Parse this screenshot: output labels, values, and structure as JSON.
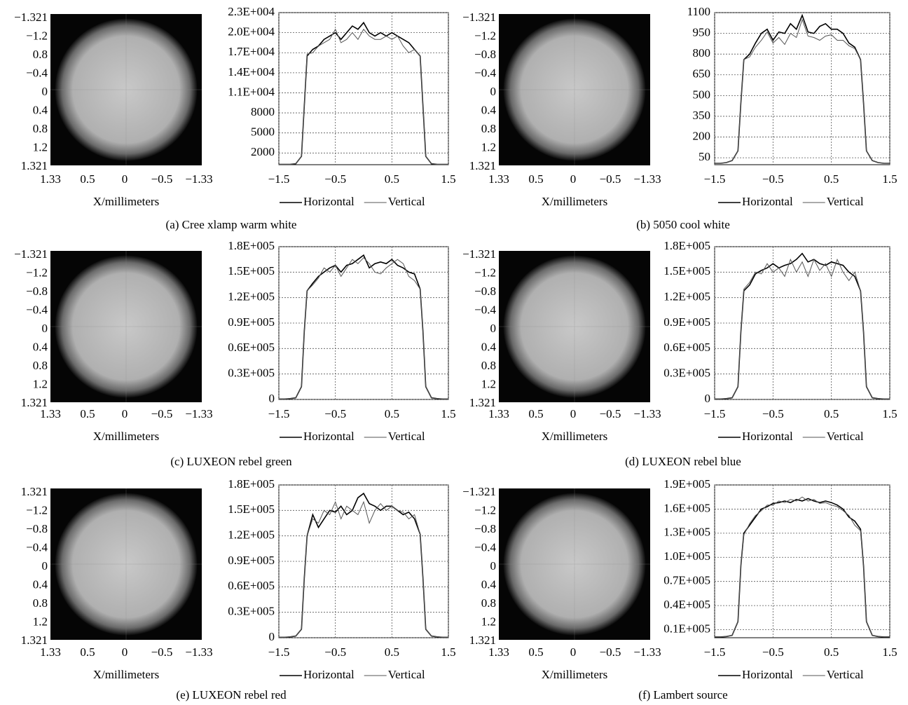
{
  "chart_data": [
    {
      "type": "line",
      "caption": "(a) Cree xlamp warm white",
      "image": {
        "yticklabels": [
          "−1.321",
          "−1.2",
          "0.8",
          "−0.4",
          "0",
          "0.4",
          "0.8",
          "1.2",
          "1.321"
        ],
        "xticklabels": [
          "1.33",
          "0.5",
          "0",
          "−0.5",
          "−1.33"
        ],
        "xlabel": "X/millimeters"
      },
      "x": [
        -1.5,
        -1.4,
        -1.3,
        -1.2,
        -1.1,
        -1.05,
        -1.0,
        -0.9,
        -0.8,
        -0.7,
        -0.6,
        -0.5,
        -0.4,
        -0.3,
        -0.2,
        -0.1,
        0,
        0.1,
        0.2,
        0.3,
        0.4,
        0.5,
        0.6,
        0.7,
        0.8,
        0.9,
        1.0,
        1.05,
        1.1,
        1.2,
        1.3,
        1.4,
        1.5
      ],
      "xlim": [
        -1.5,
        1.5
      ],
      "xticks": [
        {
          "value": -1.5,
          "label": "−1.5"
        },
        {
          "value": -0.5,
          "label": "−0.5"
        },
        0.5,
        1.5
      ],
      "ylim": [
        250,
        23000
      ],
      "yticks": [
        2000,
        5000,
        8000,
        {
          "value": 11000,
          "label": "1.1E+004"
        },
        {
          "value": 14000,
          "label": "1.4E+004"
        },
        {
          "value": 17000,
          "label": "1.7E+004"
        },
        {
          "value": 20000,
          "label": "2.0E+004"
        },
        {
          "value": 23000,
          "label": "2.3E+004"
        }
      ],
      "grid": true,
      "series": [
        {
          "name": "Horizontal",
          "color": "#000000",
          "values": [
            300,
            300,
            300,
            400,
            1500,
            9000,
            16500,
            17500,
            18000,
            19000,
            19500,
            20000,
            19000,
            20000,
            21000,
            20500,
            21500,
            20000,
            19500,
            20000,
            19500,
            20000,
            19500,
            19000,
            18500,
            17500,
            16500,
            9000,
            1500,
            400,
            300,
            300,
            300
          ]
        },
        {
          "name": "Vertical",
          "color": "#555555",
          "values": [
            300,
            300,
            300,
            400,
            1500,
            9000,
            16800,
            17000,
            18000,
            18500,
            19000,
            20500,
            18500,
            19000,
            20000,
            19000,
            20500,
            19500,
            19000,
            19000,
            19500,
            19000,
            19500,
            18000,
            17000,
            17500,
            16500,
            9000,
            1500,
            400,
            300,
            300,
            300
          ]
        }
      ]
    },
    {
      "type": "line",
      "caption": "(b) 5050 cool white",
      "image": {
        "yticklabels": [
          "−1.321",
          "−1.2",
          "−0.8",
          "−0.4",
          "0",
          "0.4",
          "0.8",
          "1.2",
          "1.321"
        ],
        "xticklabels": [
          "1.33",
          "0.5",
          "0",
          "−0.5",
          "−1.33"
        ],
        "xlabel": "X/millimeters"
      },
      "x": [
        -1.5,
        -1.4,
        -1.3,
        -1.2,
        -1.1,
        -1.05,
        -1.0,
        -0.9,
        -0.8,
        -0.7,
        -0.6,
        -0.5,
        -0.4,
        -0.3,
        -0.2,
        -0.1,
        0,
        0.1,
        0.2,
        0.3,
        0.4,
        0.5,
        0.6,
        0.7,
        0.8,
        0.9,
        1.0,
        1.05,
        1.1,
        1.2,
        1.3,
        1.4,
        1.5
      ],
      "xlim": [
        -1.5,
        1.5
      ],
      "xticks": [
        {
          "value": -1.5,
          "label": "−1.5"
        },
        {
          "value": -0.5,
          "label": "−0.5"
        },
        0.5,
        1.5
      ],
      "ylim": [
        0,
        1100
      ],
      "yticks": [
        50,
        200,
        350,
        500,
        650,
        800,
        950,
        1100
      ],
      "grid": true,
      "series": [
        {
          "name": "Horizontal",
          "color": "#000000",
          "values": [
            10,
            10,
            15,
            30,
            100,
            450,
            760,
            800,
            880,
            950,
            980,
            900,
            960,
            950,
            1020,
            980,
            1080,
            960,
            950,
            1000,
            1020,
            980,
            980,
            950,
            880,
            850,
            760,
            450,
            100,
            30,
            15,
            10,
            10
          ]
        },
        {
          "name": "Vertical",
          "color": "#555555",
          "values": [
            10,
            10,
            15,
            30,
            100,
            450,
            760,
            780,
            850,
            900,
            960,
            880,
            920,
            870,
            950,
            920,
            1050,
            930,
            920,
            900,
            930,
            940,
            900,
            900,
            860,
            840,
            760,
            450,
            100,
            30,
            15,
            10,
            10
          ]
        }
      ]
    },
    {
      "type": "line",
      "caption": "(c) LUXEON rebel green",
      "image": {
        "yticklabels": [
          "−1.321",
          "−1.2",
          "−0.8",
          "−0.4",
          "0",
          "0.4",
          "0.8",
          "1.2",
          "1.321"
        ],
        "xticklabels": [
          "1.33",
          "0.5",
          "0",
          "−0.5",
          "−1.33"
        ],
        "xlabel": "X/millimeters"
      },
      "x": [
        -1.5,
        -1.4,
        -1.3,
        -1.2,
        -1.1,
        -1.05,
        -1.0,
        -0.9,
        -0.8,
        -0.7,
        -0.6,
        -0.5,
        -0.4,
        -0.3,
        -0.2,
        -0.1,
        0,
        0.1,
        0.2,
        0.3,
        0.4,
        0.5,
        0.6,
        0.7,
        0.8,
        0.9,
        1.0,
        1.05,
        1.1,
        1.2,
        1.3,
        1.4,
        1.5
      ],
      "xlim": [
        -1.5,
        1.5
      ],
      "xticks": [
        {
          "value": -1.5,
          "label": "−1.5"
        },
        {
          "value": -0.5,
          "label": "−0.5"
        },
        0.5,
        1.5
      ],
      "ylim": [
        0,
        180000
      ],
      "yticks": [
        0,
        {
          "value": 30000,
          "label": "0.3E+005"
        },
        {
          "value": 60000,
          "label": "0.6E+005"
        },
        {
          "value": 90000,
          "label": "0.9E+005"
        },
        {
          "value": 120000,
          "label": "1.2E+005"
        },
        {
          "value": 150000,
          "label": "1.5E+005"
        },
        {
          "value": 180000,
          "label": "1.8E+005"
        }
      ],
      "grid": true,
      "series": [
        {
          "name": "Horizontal",
          "color": "#000000",
          "values": [
            500,
            500,
            1000,
            2000,
            15000,
            80000,
            128000,
            137000,
            145000,
            150000,
            155000,
            158000,
            150000,
            158000,
            160000,
            165000,
            170000,
            155000,
            160000,
            162000,
            160000,
            165000,
            158000,
            155000,
            150000,
            148000,
            130000,
            80000,
            15000,
            2000,
            1000,
            500,
            500
          ]
        },
        {
          "name": "Vertical",
          "color": "#555555",
          "values": [
            500,
            500,
            1000,
            2000,
            15000,
            80000,
            128000,
            135000,
            143000,
            155000,
            150000,
            158000,
            145000,
            155000,
            165000,
            160000,
            167000,
            160000,
            150000,
            148000,
            155000,
            160000,
            165000,
            160000,
            145000,
            140000,
            130000,
            80000,
            15000,
            2000,
            1000,
            500,
            500
          ]
        }
      ]
    },
    {
      "type": "line",
      "caption": "(d) LUXEON rebel blue",
      "image": {
        "yticklabels": [
          "−1.321",
          "−1.2",
          "−0.8",
          "−0.4",
          "0",
          "0.4",
          "0.8",
          "1.2",
          "1.321"
        ],
        "xticklabels": [
          "1.33",
          "0.5",
          "0",
          "−0.5",
          "−1.33"
        ],
        "xlabel": "X/millimeters"
      },
      "x": [
        -1.5,
        -1.4,
        -1.3,
        -1.2,
        -1.1,
        -1.05,
        -1.0,
        -0.9,
        -0.8,
        -0.7,
        -0.6,
        -0.5,
        -0.4,
        -0.3,
        -0.2,
        -0.1,
        0,
        0.1,
        0.2,
        0.3,
        0.4,
        0.5,
        0.6,
        0.7,
        0.8,
        0.9,
        1.0,
        1.05,
        1.1,
        1.2,
        1.3,
        1.4,
        1.5
      ],
      "xlim": [
        -1.5,
        1.5
      ],
      "xticks": [
        {
          "value": -1.5,
          "label": "−1.5"
        },
        {
          "value": -0.5,
          "label": "−0.5"
        },
        0.5,
        1.5
      ],
      "ylim": [
        0,
        180000
      ],
      "yticks": [
        0,
        {
          "value": 30000,
          "label": "0.3E+005"
        },
        {
          "value": 60000,
          "label": "0.6E+005"
        },
        {
          "value": 90000,
          "label": "0.9E+005"
        },
        {
          "value": 120000,
          "label": "1.2E+005"
        },
        {
          "value": 150000,
          "label": "1.5E+005"
        },
        {
          "value": 180000,
          "label": "1.8E+005"
        }
      ],
      "grid": true,
      "series": [
        {
          "name": "Horizontal",
          "color": "#000000",
          "values": [
            500,
            500,
            1000,
            2000,
            15000,
            80000,
            128000,
            135000,
            148000,
            152000,
            155000,
            160000,
            155000,
            158000,
            160000,
            165000,
            172000,
            162000,
            165000,
            160000,
            158000,
            162000,
            160000,
            158000,
            150000,
            145000,
            128000,
            80000,
            15000,
            2000,
            1000,
            500,
            500
          ]
        },
        {
          "name": "Vertical",
          "color": "#555555",
          "values": [
            500,
            500,
            1000,
            2000,
            15000,
            80000,
            130000,
            138000,
            150000,
            148000,
            160000,
            150000,
            155000,
            145000,
            165000,
            150000,
            162000,
            145000,
            165000,
            152000,
            160000,
            145000,
            165000,
            150000,
            140000,
            150000,
            128000,
            80000,
            15000,
            2000,
            1000,
            500,
            500
          ]
        }
      ]
    },
    {
      "type": "line",
      "caption": "(e) LUXEON rebel red",
      "image": {
        "yticklabels": [
          "1.321",
          "−1.2",
          "−0.8",
          "−0.4",
          "0",
          "0.4",
          "0.8",
          "1.2",
          "1.321"
        ],
        "xticklabels": [
          "1.33",
          "0.5",
          "0",
          "−0.5",
          "−1.33"
        ],
        "xlabel": "X/millimeters"
      },
      "x": [
        -1.5,
        -1.4,
        -1.3,
        -1.2,
        -1.1,
        -1.05,
        -1.0,
        -0.9,
        -0.8,
        -0.7,
        -0.6,
        -0.5,
        -0.4,
        -0.3,
        -0.2,
        -0.1,
        0,
        0.1,
        0.2,
        0.3,
        0.4,
        0.5,
        0.6,
        0.7,
        0.8,
        0.9,
        1.0,
        1.05,
        1.1,
        1.2,
        1.3,
        1.4,
        1.5
      ],
      "xlim": [
        -1.5,
        1.5
      ],
      "xticks": [
        {
          "value": -1.5,
          "label": "−1.5"
        },
        {
          "value": -0.5,
          "label": "−0.5"
        },
        0.5,
        1.5
      ],
      "ylim": [
        0,
        180000
      ],
      "yticks": [
        0,
        {
          "value": 30000,
          "label": "0.3E+005"
        },
        {
          "value": 60000,
          "label": "0.6E+005"
        },
        {
          "value": 90000,
          "label": "0.9E+005"
        },
        {
          "value": 120000,
          "label": "1.2E+005"
        },
        {
          "value": 150000,
          "label": "1.5E+005"
        },
        {
          "value": 180000,
          "label": "1.8E+005"
        }
      ],
      "grid": true,
      "series": [
        {
          "name": "Horizontal",
          "color": "#000000",
          "values": [
            500,
            500,
            1000,
            2000,
            10000,
            70000,
            120000,
            145000,
            130000,
            140000,
            150000,
            148000,
            155000,
            145000,
            150000,
            165000,
            170000,
            158000,
            155000,
            150000,
            155000,
            155000,
            150000,
            145000,
            148000,
            140000,
            122000,
            70000,
            10000,
            2000,
            1000,
            500,
            500
          ]
        },
        {
          "name": "Vertical",
          "color": "#555555",
          "values": [
            500,
            500,
            1000,
            2000,
            10000,
            70000,
            120000,
            140000,
            135000,
            150000,
            145000,
            160000,
            140000,
            155000,
            150000,
            145000,
            160000,
            135000,
            150000,
            158000,
            150000,
            155000,
            150000,
            148000,
            140000,
            145000,
            122000,
            70000,
            10000,
            2000,
            1000,
            500,
            500
          ]
        }
      ]
    },
    {
      "type": "line",
      "caption": "(f) Lambert source",
      "image": {
        "yticklabels": [
          "−1.321",
          "−1.2",
          "−0.8",
          "−0.4",
          "0",
          "0.4",
          "0.8",
          "1.2",
          "1.321"
        ],
        "xticklabels": [
          "1.33",
          "0.5",
          "0",
          "−0.5",
          "−1.33"
        ],
        "xlabel": "X/millimeters"
      },
      "x": [
        -1.5,
        -1.4,
        -1.3,
        -1.2,
        -1.1,
        -1.05,
        -1.0,
        -0.9,
        -0.8,
        -0.7,
        -0.6,
        -0.5,
        -0.4,
        -0.3,
        -0.2,
        -0.1,
        0,
        0.1,
        0.2,
        0.3,
        0.4,
        0.5,
        0.6,
        0.7,
        0.8,
        0.9,
        1.0,
        1.05,
        1.1,
        1.2,
        1.3,
        1.4,
        1.5
      ],
      "xlim": [
        -1.5,
        1.5
      ],
      "xticks": [
        {
          "value": -1.5,
          "label": "−1.5"
        },
        {
          "value": -0.5,
          "label": "−0.5"
        },
        0.5,
        1.5
      ],
      "ylim": [
        0,
        190000
      ],
      "yticks": [
        {
          "value": 10000,
          "label": "0.1E+005"
        },
        {
          "value": 40000,
          "label": "0.4E+005"
        },
        {
          "value": 70000,
          "label": "0.7E+005"
        },
        {
          "value": 100000,
          "label": "1.0E+005"
        },
        {
          "value": 130000,
          "label": "1.3E+005"
        },
        {
          "value": 160000,
          "label": "1.6E+005"
        },
        {
          "value": 190000,
          "label": "1.9E+005"
        }
      ],
      "grid": true,
      "series": [
        {
          "name": "Horizontal",
          "color": "#000000",
          "values": [
            1000,
            1000,
            1500,
            3000,
            20000,
            90000,
            130000,
            140000,
            150000,
            160000,
            163000,
            167000,
            168000,
            170000,
            168000,
            172000,
            170000,
            173000,
            170000,
            168000,
            170000,
            168000,
            165000,
            160000,
            150000,
            145000,
            135000,
            90000,
            20000,
            3000,
            1500,
            1000,
            1000
          ]
        },
        {
          "name": "Vertical",
          "color": "#555555",
          "values": [
            1000,
            1000,
            1500,
            3000,
            20000,
            90000,
            128000,
            142000,
            152000,
            158000,
            165000,
            165000,
            170000,
            168000,
            172000,
            170000,
            175000,
            170000,
            172000,
            167000,
            168000,
            165000,
            163000,
            158000,
            152000,
            140000,
            133000,
            90000,
            20000,
            3000,
            1500,
            1000,
            1000
          ]
        }
      ]
    }
  ]
}
